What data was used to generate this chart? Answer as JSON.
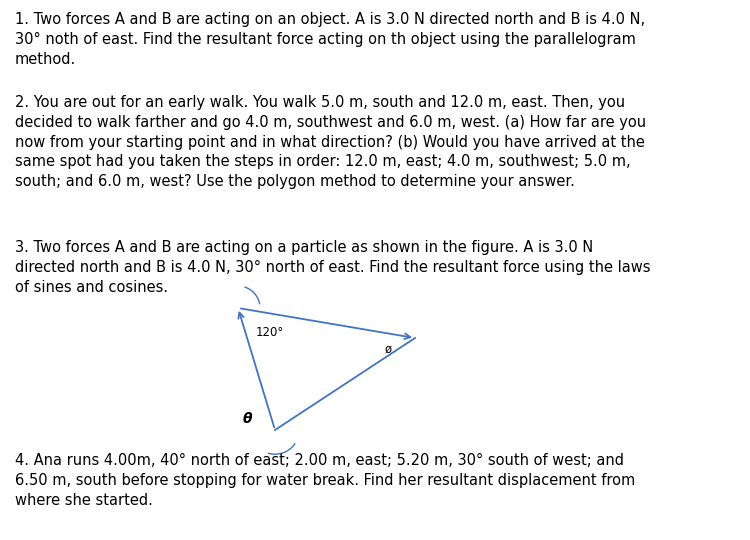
{
  "background_color": "#ffffff",
  "text_color": "#000000",
  "line_color": "#4472C4",
  "font_size": 10.5,
  "para1": "1. Two forces A and B are acting on an object. A is 3.0 N directed north and B is 4.0 N,\n30° noth of east. Find the resultant force acting on th object using the parallelogram\nmethod.",
  "para2": "2. You are out for an early walk. You walk 5.0 m, south and 12.0 m, east. Then, you\ndecided to walk farther and go 4.0 m, southwest and 6.0 m, west. (a) How far are you\nnow from your starting point and in what direction? (b) Would you have arrived at the\nsame spot had you taken the steps in order: 12.0 m, east; 4.0 m, southwest; 5.0 m,\nsouth; and 6.0 m, west? Use the polygon method to determine your answer.",
  "para3": "3. Two forces A and B are acting on a particle as shown in the figure. A is 3.0 N\ndirected north and B is 4.0 N, 30° north of east. Find the resultant force using the laws\nof sines and cosines.",
  "para4": "4. Ana runs 4.00m, 40° north of east; 2.00 m, east; 5.20 m, 30° south of west; and\n6.50 m, south before stopping for water break. Find her resultant displacement from\nwhere she started.",
  "label_120": "120°",
  "label_theta": "θ",
  "label_phi": "ø",
  "v1": [
    0.365,
    0.385
  ],
  "v2": [
    0.315,
    0.555
  ],
  "v3": [
    0.555,
    0.515
  ]
}
